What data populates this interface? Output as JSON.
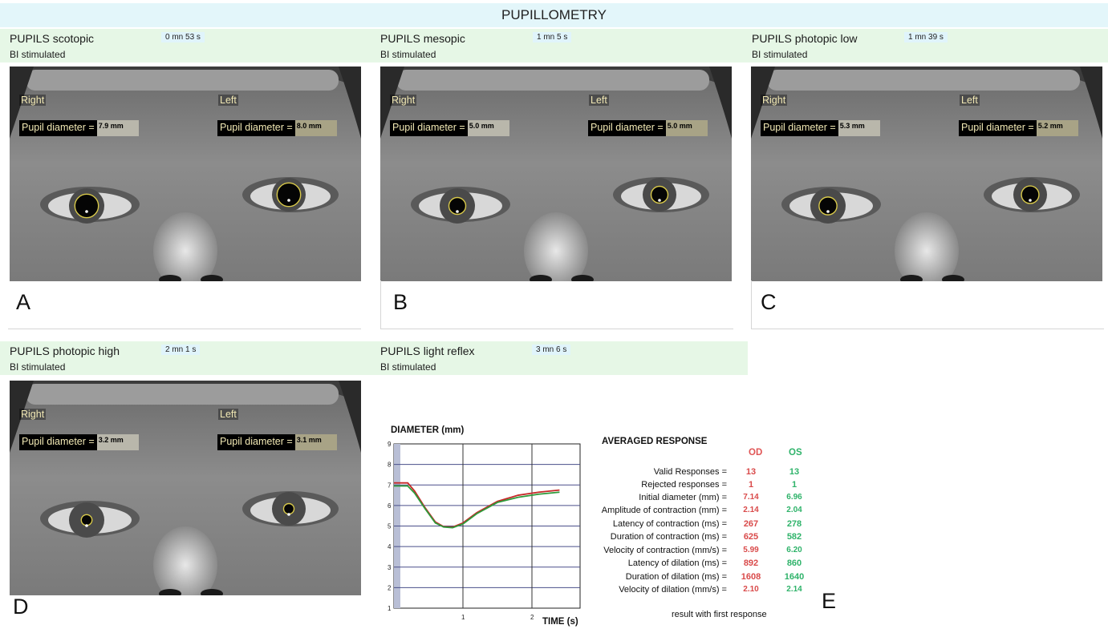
{
  "app_title": "PUPILLOMETRY",
  "panels": [
    {
      "title": "PUPILS scotopic",
      "time": "0 mn 53 s",
      "stim": "BI stimulated",
      "letter": "A",
      "right_label": "Right",
      "left_label": "Left",
      "pd_label": "Pupil diameter =",
      "right_value": "7.9 mm",
      "left_value": "8.0 mm"
    },
    {
      "title": "PUPILS mesopic",
      "time": "1 mn 5 s",
      "stim": "BI stimulated",
      "letter": "B",
      "right_label": "Right",
      "left_label": "Left",
      "pd_label": "Pupil diameter =",
      "right_value": "5.0 mm",
      "left_value": "5.0 mm"
    },
    {
      "title": "PUPILS photopic low",
      "time": "1 mn 39 s",
      "stim": "BI stimulated",
      "letter": "C",
      "right_label": "Right",
      "left_label": "Left",
      "pd_label": "Pupil diameter =",
      "right_value": "5.3 mm",
      "left_value": "5.2 mm"
    },
    {
      "title": "PUPILS photopic high",
      "time": "2 mn 1 s",
      "stim": "BI stimulated",
      "letter": "D",
      "right_label": "Right",
      "left_label": "Left",
      "pd_label": "Pupil diameter =",
      "right_value": "3.2 mm",
      "left_value": "3.1 mm"
    },
    {
      "title": "PUPILS light reflex",
      "time": "3 mn 6 s",
      "stim": "BI stimulated",
      "letter": "E"
    }
  ],
  "chart_data": {
    "type": "line",
    "ylabel": "DIAMETER (mm)",
    "xlabel": "TIME (s)",
    "ylim": [
      1,
      9
    ],
    "y_ticks": [
      "1",
      "2",
      "3",
      "4",
      "5",
      "6",
      "7",
      "8",
      "9"
    ],
    "x_ticks": [
      "1",
      "2"
    ],
    "grid": true,
    "series": [
      {
        "color": "#c62828",
        "x": [
          0,
          0.2,
          0.3,
          0.45,
          0.6,
          0.72,
          0.85,
          1.0,
          1.2,
          1.5,
          1.8,
          2.1,
          2.4
        ],
        "values": [
          7.1,
          7.1,
          6.7,
          5.9,
          5.2,
          4.97,
          4.95,
          5.15,
          5.65,
          6.2,
          6.5,
          6.65,
          6.75
        ]
      },
      {
        "color": "#2e9a3a",
        "x": [
          0,
          0.2,
          0.3,
          0.45,
          0.6,
          0.72,
          0.85,
          1.0,
          1.2,
          1.5,
          1.8,
          2.1,
          2.4
        ],
        "values": [
          6.95,
          6.95,
          6.6,
          5.85,
          5.15,
          4.95,
          4.92,
          5.1,
          5.6,
          6.15,
          6.4,
          6.55,
          6.65
        ]
      }
    ]
  },
  "averaged": {
    "title": "AVERAGED RESPONSE",
    "od_header": "OD",
    "os_header": "OS",
    "rows": [
      {
        "label": "Valid Responses =",
        "od": "13",
        "os": "13"
      },
      {
        "label": "Rejected responses =",
        "od": "1",
        "os": "1"
      },
      {
        "label": "Initial diameter (mm) =",
        "od": "7.14",
        "os": "6.96"
      },
      {
        "label": "Amplitude of contraction (mm) =",
        "od": "2.14",
        "os": "2.04"
      },
      {
        "label": "Latency of contraction (ms) =",
        "od": "267",
        "os": "278"
      },
      {
        "label": "Duration of contraction (ms) =",
        "od": "625",
        "os": "582"
      },
      {
        "label": "Velocity of contraction (mm/s) =",
        "od": "5.99",
        "os": "6.20"
      },
      {
        "label": "Latency of dilation (ms) =",
        "od": "892",
        "os": "860"
      },
      {
        "label": "Duration of dilation (ms) =",
        "od": "1608",
        "os": "1640"
      },
      {
        "label": "Velocity of dilation (mm/s) =",
        "od": "2.10",
        "os": "2.14"
      }
    ],
    "footnote": "result with first response"
  },
  "colors": {
    "od": "#d94a4a",
    "os": "#2fb36a",
    "header_green": "#e6f7e6",
    "title_blue": "#e3f6fa"
  }
}
